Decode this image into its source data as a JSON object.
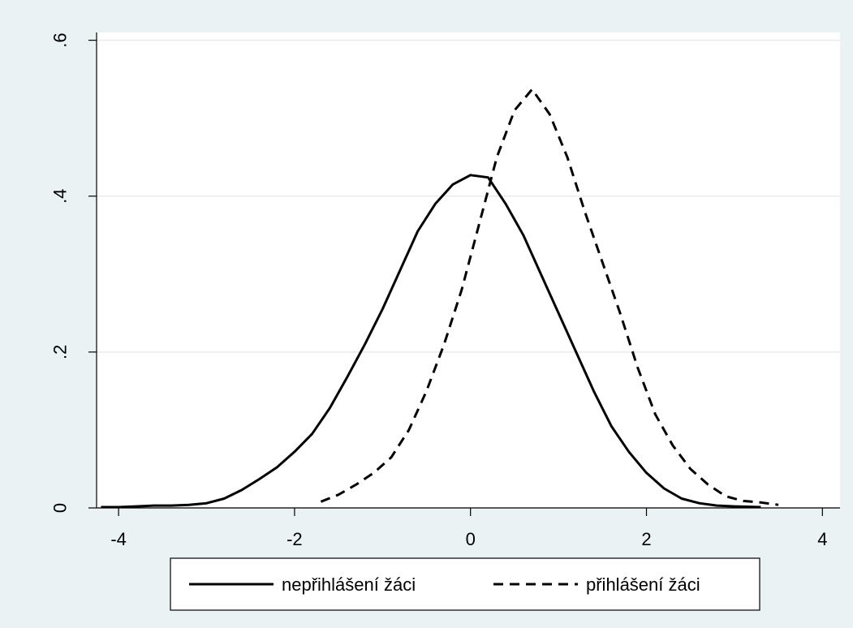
{
  "chart_data": {
    "type": "line",
    "title": "",
    "xlabel": "",
    "ylabel": "",
    "xlim": [
      -4.25,
      4.2
    ],
    "ylim": [
      0,
      0.61
    ],
    "x_ticks": [
      -4,
      -2,
      0,
      2,
      4
    ],
    "x_tick_labels": [
      "-4",
      "-2",
      "0",
      "2",
      "4"
    ],
    "y_ticks": [
      0,
      0.2,
      0.4,
      0.6
    ],
    "y_tick_labels": [
      "0",
      ".2",
      ".4",
      ".6"
    ],
    "grid": true,
    "legend_position": "bottom",
    "series": [
      {
        "name": "nepřihlášení žáci",
        "style": "solid",
        "color": "#000000",
        "x": [
          -4.2,
          -4.0,
          -3.8,
          -3.6,
          -3.4,
          -3.2,
          -3.0,
          -2.8,
          -2.6,
          -2.4,
          -2.2,
          -2.0,
          -1.8,
          -1.6,
          -1.4,
          -1.2,
          -1.0,
          -0.8,
          -0.6,
          -0.4,
          -0.2,
          0.0,
          0.2,
          0.4,
          0.6,
          0.8,
          1.0,
          1.2,
          1.4,
          1.6,
          1.8,
          2.0,
          2.2,
          2.4,
          2.6,
          2.8,
          3.0,
          3.3
        ],
        "y": [
          0.001,
          0.001,
          0.002,
          0.003,
          0.003,
          0.004,
          0.006,
          0.012,
          0.023,
          0.037,
          0.052,
          0.072,
          0.095,
          0.128,
          0.168,
          0.21,
          0.255,
          0.305,
          0.355,
          0.39,
          0.415,
          0.427,
          0.424,
          0.39,
          0.35,
          0.3,
          0.25,
          0.2,
          0.15,
          0.105,
          0.072,
          0.045,
          0.025,
          0.012,
          0.006,
          0.003,
          0.002,
          0.001
        ]
      },
      {
        "name": "přihlášení žáci",
        "style": "dashed",
        "color": "#000000",
        "x": [
          -1.7,
          -1.5,
          -1.3,
          -1.1,
          -0.9,
          -0.7,
          -0.5,
          -0.3,
          -0.1,
          0.1,
          0.3,
          0.5,
          0.7,
          0.9,
          1.1,
          1.3,
          1.5,
          1.7,
          1.9,
          2.1,
          2.3,
          2.5,
          2.7,
          2.9,
          3.1,
          3.3,
          3.5
        ],
        "y": [
          0.008,
          0.017,
          0.03,
          0.045,
          0.065,
          0.1,
          0.15,
          0.21,
          0.28,
          0.365,
          0.45,
          0.51,
          0.537,
          0.505,
          0.45,
          0.38,
          0.315,
          0.25,
          0.18,
          0.12,
          0.08,
          0.05,
          0.03,
          0.015,
          0.009,
          0.007,
          0.004
        ]
      }
    ]
  }
}
